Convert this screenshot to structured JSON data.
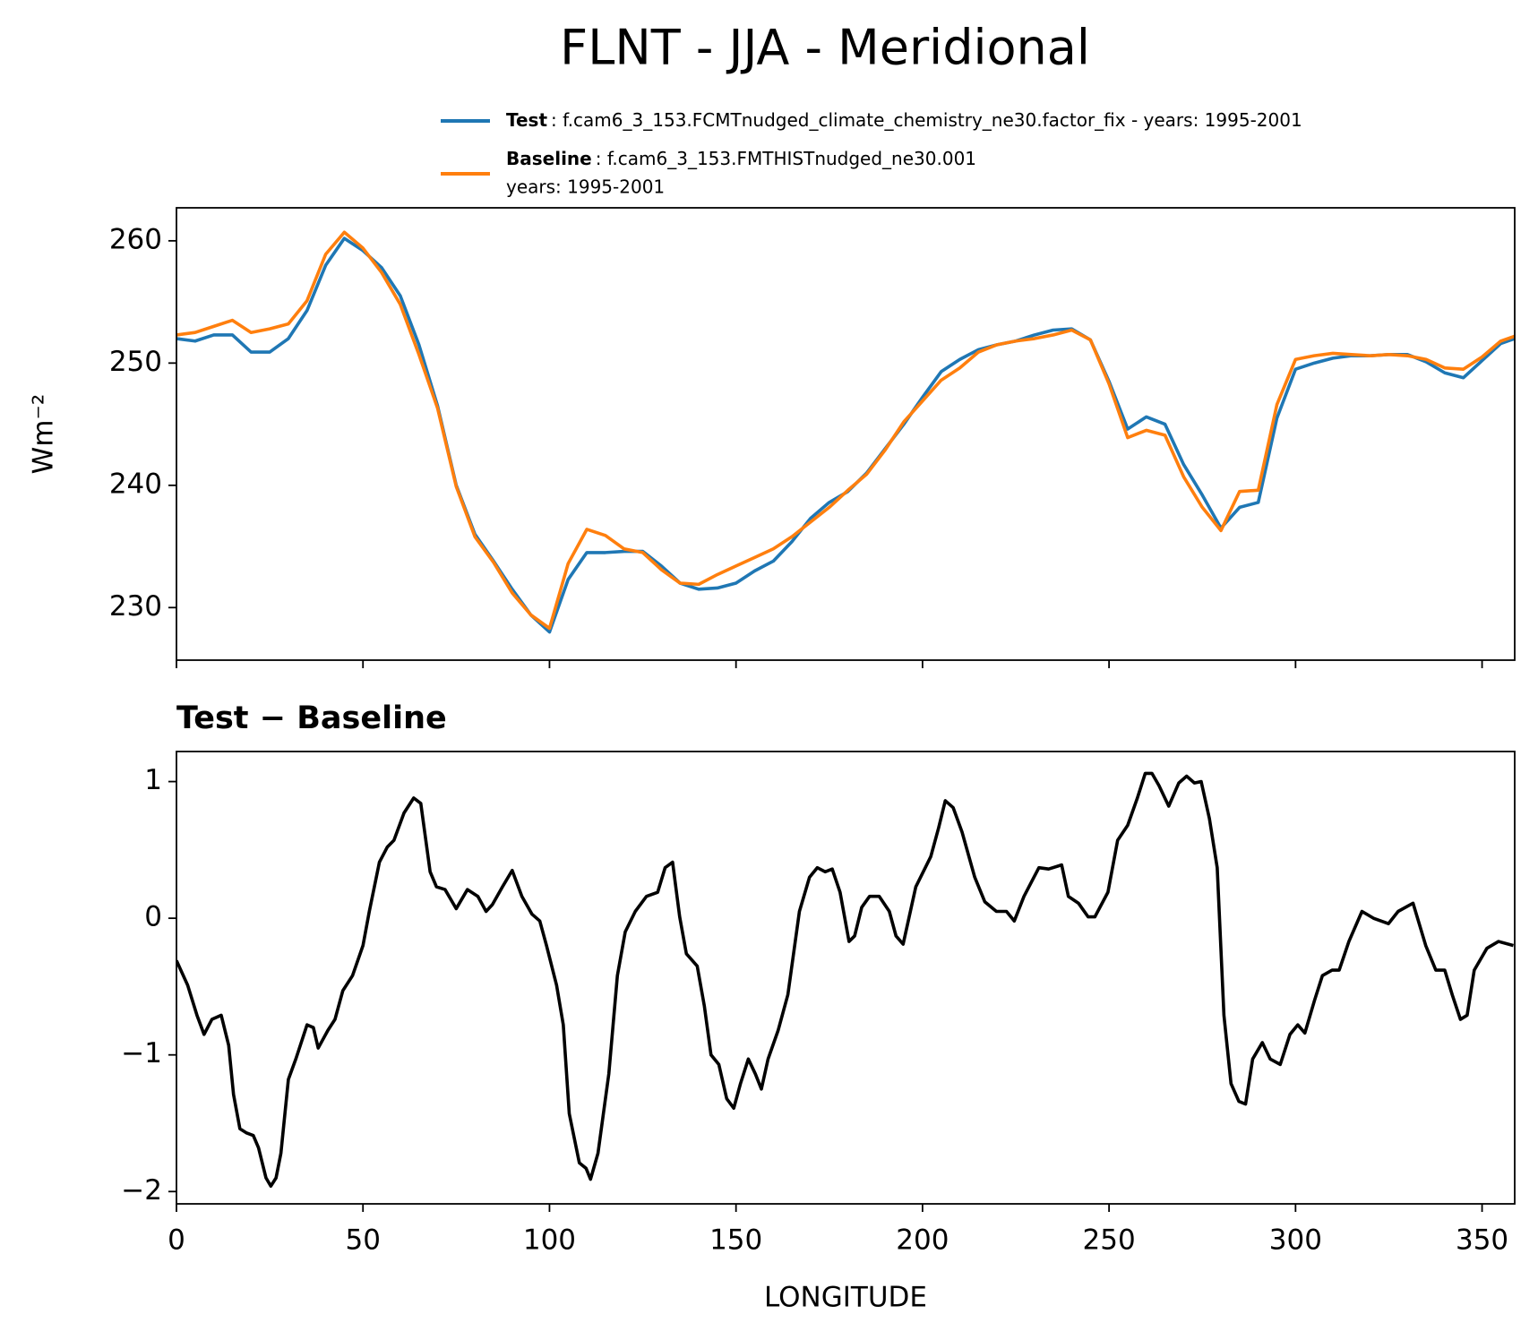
{
  "title": "FLNT - JJA - Meridional",
  "chart_data": [
    {
      "type": "line",
      "ylabel": "Wm⁻²",
      "x": [
        0,
        5,
        10,
        15,
        20,
        25,
        30,
        35,
        40,
        45,
        50,
        55,
        60,
        65,
        70,
        75,
        80,
        85,
        90,
        95,
        100,
        105,
        110,
        115,
        120,
        125,
        130,
        135,
        140,
        145,
        150,
        155,
        160,
        165,
        170,
        175,
        180,
        185,
        190,
        195,
        200,
        205,
        210,
        215,
        220,
        225,
        230,
        235,
        240,
        245,
        250,
        255,
        260,
        265,
        270,
        275,
        280,
        285,
        290,
        295,
        300,
        305,
        310,
        315,
        320,
        325,
        330,
        335,
        340,
        345,
        350,
        355,
        358.75
      ],
      "series": [
        {
          "name": "Test",
          "description": [
            ": f.cam6_3_153.FCMTnudged_climate_chemistry_ne30.factor_fix - years: 1995-2001"
          ],
          "color": "#1f77b4",
          "values": [
            252.0,
            251.8,
            252.3,
            252.3,
            250.9,
            250.9,
            252.0,
            254.3,
            258.0,
            260.2,
            259.2,
            257.8,
            255.5,
            251.5,
            246.5,
            240.0,
            236.0,
            233.8,
            231.5,
            229.4,
            228.0,
            232.3,
            234.5,
            234.5,
            234.6,
            234.6,
            233.4,
            232.0,
            231.5,
            231.6,
            232.0,
            233.0,
            233.8,
            235.4,
            237.3,
            238.6,
            239.5,
            241.0,
            243.0,
            245.0,
            247.2,
            249.3,
            250.3,
            251.1,
            251.5,
            251.8,
            252.3,
            252.7,
            252.8,
            251.9,
            248.5,
            244.6,
            245.6,
            245.0,
            241.7,
            239.2,
            236.5,
            238.2,
            238.6,
            245.5,
            249.5,
            250.0,
            250.4,
            250.6,
            250.6,
            250.7,
            250.7,
            250.1,
            249.2,
            248.8,
            250.2,
            251.6,
            252.0
          ]
        },
        {
          "name": "Baseline",
          "description": [
            ": f.cam6_3_153.FMTHISTnudged_ne30.001",
            "years: 1995-2001"
          ],
          "color": "#ff7f0e",
          "values": [
            252.3,
            252.5,
            253.0,
            253.5,
            252.5,
            252.8,
            253.2,
            255.1,
            258.9,
            260.7,
            259.4,
            257.4,
            254.8,
            250.7,
            246.3,
            239.9,
            235.8,
            233.7,
            231.2,
            229.4,
            228.3,
            233.6,
            236.4,
            235.9,
            234.8,
            234.5,
            233.1,
            232.0,
            231.9,
            232.7,
            233.4,
            234.1,
            234.8,
            235.8,
            237.0,
            238.2,
            239.6,
            240.9,
            242.9,
            245.2,
            246.9,
            248.6,
            249.6,
            250.9,
            251.5,
            251.8,
            252.0,
            252.3,
            252.7,
            251.9,
            248.3,
            243.9,
            244.5,
            244.1,
            240.7,
            238.2,
            236.3,
            239.5,
            239.6,
            246.6,
            250.3,
            250.6,
            250.8,
            250.7,
            250.6,
            250.7,
            250.6,
            250.3,
            249.6,
            249.5,
            250.5,
            251.8,
            252.2
          ]
        }
      ],
      "xlim": [
        0,
        358.75
      ],
      "xticks": [
        0,
        50,
        100,
        150,
        200,
        250,
        300,
        350
      ],
      "xtick_labels": false,
      "ylim": [
        225.7,
        262.7
      ],
      "yticks": [
        230,
        240,
        250,
        260
      ]
    },
    {
      "type": "line",
      "title": "Test − Baseline",
      "xlabel": "LONGITUDE",
      "x": [
        0,
        3,
        5.5,
        7.4,
        9.5,
        12,
        14,
        15.3,
        17,
        18.7,
        20.6,
        22,
        24,
        25.3,
        26.7,
        28,
        30,
        32,
        35,
        36.7,
        38,
        40.6,
        42.5,
        44.6,
        47.2,
        50,
        51.7,
        54.4,
        56.5,
        58.3,
        61,
        63.6,
        65.5,
        68,
        69.7,
        72,
        75,
        78,
        80.8,
        83,
        84.7,
        87.4,
        90,
        92.6,
        95.3,
        97.4,
        99.2,
        101.9,
        103.7,
        105.3,
        108,
        109.8,
        111,
        113,
        115.9,
        118.2,
        120.3,
        123,
        126,
        129,
        131,
        133,
        134.9,
        136.7,
        139.6,
        141.5,
        143.3,
        145.4,
        147.5,
        149.4,
        151.2,
        153.3,
        155.2,
        156.8,
        158.6,
        161.3,
        163.9,
        167,
        169.7,
        171.8,
        173.9,
        175.8,
        177.9,
        180.3,
        181.8,
        183.7,
        185.8,
        188.4,
        191.1,
        192.9,
        194.8,
        198.2,
        202.2,
        204.3,
        206.1,
        208.2,
        210.6,
        214,
        216.7,
        219.8,
        222.5,
        224.6,
        227.2,
        231.2,
        233.8,
        237.3,
        239.1,
        241.8,
        244.4,
        246.2,
        249.7,
        252.3,
        255,
        257.6,
        259.7,
        261.5,
        263.4,
        266,
        268.7,
        270.8,
        272.9,
        274.7,
        276.9,
        279,
        280.8,
        282.7,
        284.8,
        286.6,
        288.5,
        291.1,
        293.2,
        295.9,
        298.5,
        300.6,
        302.5,
        305.1,
        307.2,
        309.8,
        311.7,
        314.3,
        317.8,
        320.9,
        324.9,
        327.5,
        331.5,
        334.9,
        337.6,
        340,
        342,
        344.2,
        346,
        347.9,
        351.3,
        354.4,
        358.4
      ],
      "series": [
        {
          "color": "#000000",
          "values": [
            -0.31,
            -0.49,
            -0.71,
            -0.85,
            -0.74,
            -0.71,
            -0.93,
            -1.29,
            -1.54,
            -1.57,
            -1.59,
            -1.68,
            -1.9,
            -1.96,
            -1.9,
            -1.72,
            -1.18,
            -1.03,
            -0.78,
            -0.8,
            -0.95,
            -0.82,
            -0.74,
            -0.53,
            -0.42,
            -0.2,
            0.05,
            0.41,
            0.52,
            0.57,
            0.77,
            0.88,
            0.84,
            0.34,
            0.23,
            0.21,
            0.07,
            0.21,
            0.16,
            0.05,
            0.1,
            0.23,
            0.35,
            0.16,
            0.03,
            -0.02,
            -0.2,
            -0.49,
            -0.78,
            -1.43,
            -1.79,
            -1.83,
            -1.91,
            -1.72,
            -1.14,
            -0.42,
            -0.1,
            0.05,
            0.16,
            0.19,
            0.37,
            0.41,
            0.01,
            -0.26,
            -0.35,
            -0.64,
            -1.0,
            -1.07,
            -1.32,
            -1.39,
            -1.21,
            -1.03,
            -1.14,
            -1.25,
            -1.03,
            -0.82,
            -0.56,
            0.05,
            0.3,
            0.37,
            0.34,
            0.36,
            0.19,
            -0.17,
            -0.13,
            0.08,
            0.16,
            0.16,
            0.05,
            -0.13,
            -0.19,
            0.23,
            0.45,
            0.66,
            0.86,
            0.81,
            0.63,
            0.3,
            0.12,
            0.05,
            0.05,
            -0.02,
            0.16,
            0.37,
            0.36,
            0.39,
            0.16,
            0.11,
            0.01,
            0.01,
            0.19,
            0.57,
            0.68,
            0.88,
            1.06,
            1.06,
            0.97,
            0.82,
            0.99,
            1.04,
            0.99,
            1.0,
            0.73,
            0.37,
            -0.71,
            -1.21,
            -1.34,
            -1.36,
            -1.03,
            -0.91,
            -1.03,
            -1.07,
            -0.85,
            -0.78,
            -0.84,
            -0.6,
            -0.42,
            -0.38,
            -0.38,
            -0.17,
            0.05,
            0.0,
            -0.04,
            0.05,
            0.11,
            -0.2,
            -0.38,
            -0.38,
            -0.56,
            -0.74,
            -0.71,
            -0.38,
            -0.22,
            -0.17,
            -0.2
          ]
        }
      ],
      "xlim": [
        0,
        358.75
      ],
      "xticks": [
        0,
        50,
        100,
        150,
        200,
        250,
        300,
        350
      ],
      "xtick_labels": true,
      "ylim": [
        -2.09,
        1.22
      ],
      "yticks": [
        {
          "value": -2,
          "label": "−2"
        },
        {
          "value": -1,
          "label": "−1"
        },
        0,
        1
      ]
    }
  ]
}
